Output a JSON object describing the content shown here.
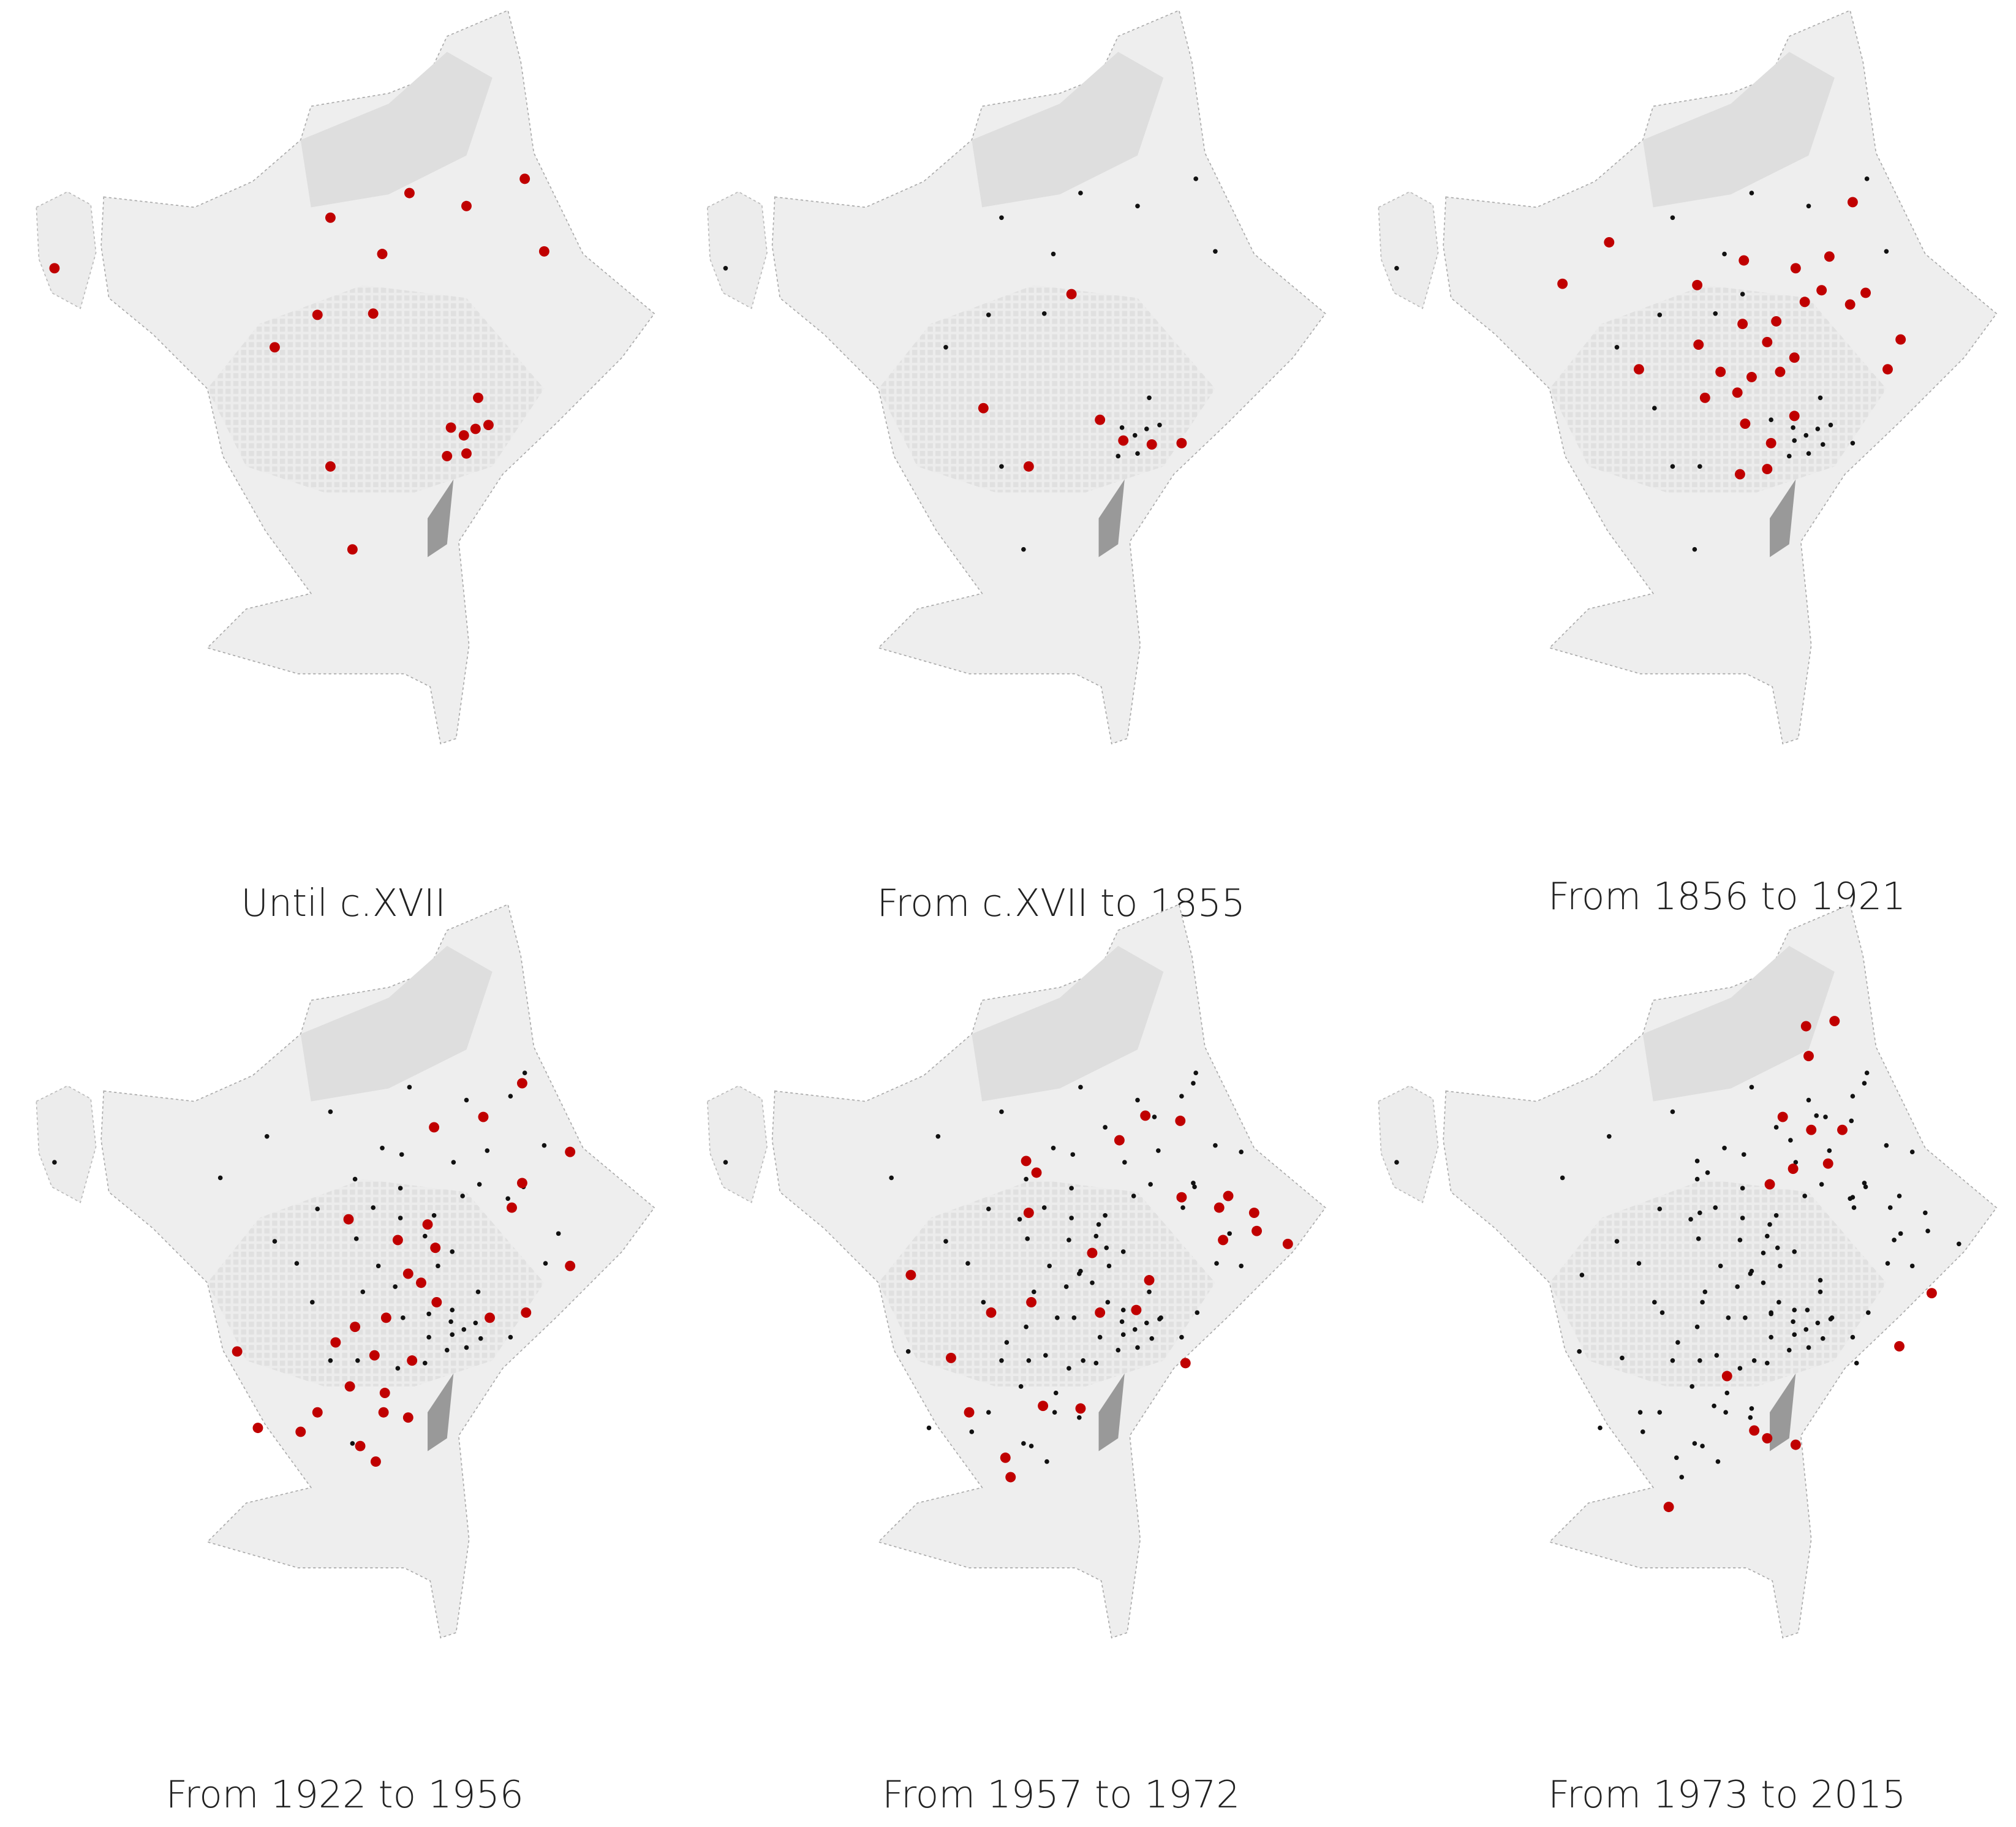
{
  "panels": [
    {
      "label": "Until c.XVII"
    },
    {
      "label": "From c.XVII to 1855"
    },
    {
      "label": "From 1856 to 1921"
    },
    {
      "label": "From 1922 to 1956"
    },
    {
      "label": "From 1957 to 1972"
    },
    {
      "label": "From 1973 to 2015"
    }
  ]
}
